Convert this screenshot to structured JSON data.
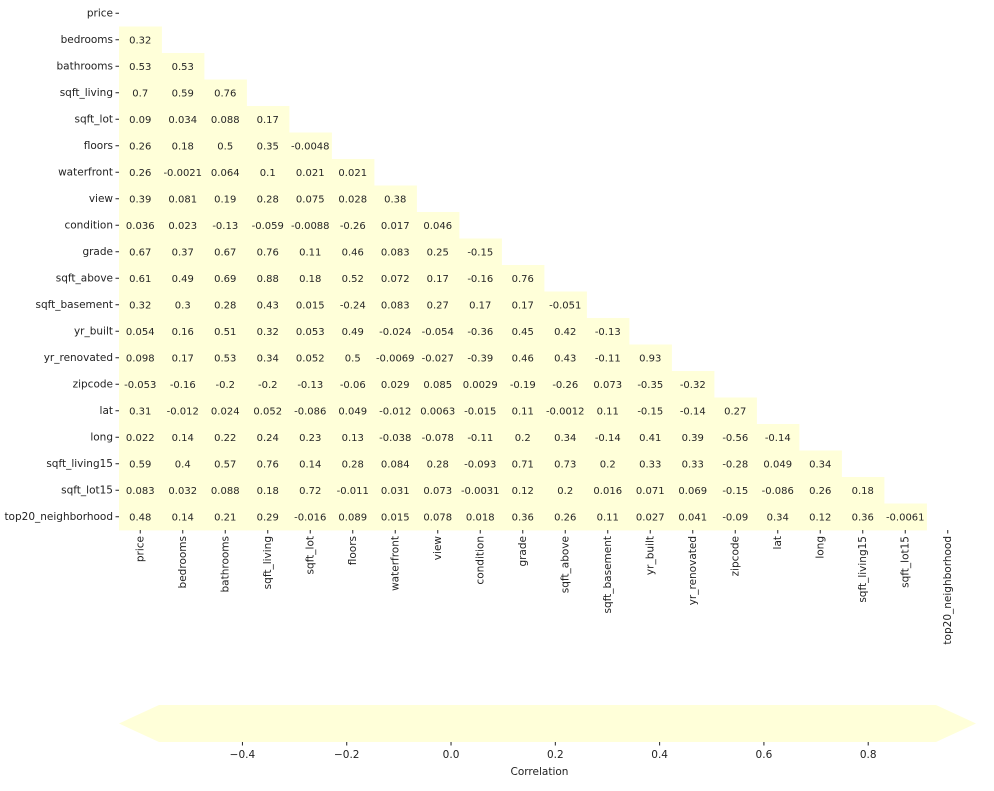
{
  "chart_data": {
    "type": "heatmap",
    "title": "",
    "mask": "upper-triangle",
    "labels": [
      "price",
      "bedrooms",
      "bathrooms",
      "sqft_living",
      "sqft_lot",
      "floors",
      "waterfront",
      "view",
      "condition",
      "grade",
      "sqft_above",
      "sqft_basement",
      "yr_built",
      "yr_renovated",
      "zipcode",
      "lat",
      "long",
      "sqft_living15",
      "sqft_lot15",
      "top20_neighborhood"
    ],
    "values": [
      [],
      [
        "0.32"
      ],
      [
        "0.53",
        "0.53"
      ],
      [
        "0.7",
        "0.59",
        "0.76"
      ],
      [
        "0.09",
        "0.034",
        "0.088",
        "0.17"
      ],
      [
        "0.26",
        "0.18",
        "0.5",
        "0.35",
        "-0.0048"
      ],
      [
        "0.26",
        "-0.0021",
        "0.064",
        "0.1",
        "0.021",
        "0.021"
      ],
      [
        "0.39",
        "0.081",
        "0.19",
        "0.28",
        "0.075",
        "0.028",
        "0.38"
      ],
      [
        "0.036",
        "0.023",
        "-0.13",
        "-0.059",
        "-0.0088",
        "-0.26",
        "0.017",
        "0.046"
      ],
      [
        "0.67",
        "0.37",
        "0.67",
        "0.76",
        "0.11",
        "0.46",
        "0.083",
        "0.25",
        "-0.15"
      ],
      [
        "0.61",
        "0.49",
        "0.69",
        "0.88",
        "0.18",
        "0.52",
        "0.072",
        "0.17",
        "-0.16",
        "0.76"
      ],
      [
        "0.32",
        "0.3",
        "0.28",
        "0.43",
        "0.015",
        "-0.24",
        "0.083",
        "0.27",
        "0.17",
        "0.17",
        "-0.051"
      ],
      [
        "0.054",
        "0.16",
        "0.51",
        "0.32",
        "0.053",
        "0.49",
        "-0.024",
        "-0.054",
        "-0.36",
        "0.45",
        "0.42",
        "-0.13"
      ],
      [
        "0.098",
        "0.17",
        "0.53",
        "0.34",
        "0.052",
        "0.5",
        "-0.0069",
        "-0.027",
        "-0.39",
        "0.46",
        "0.43",
        "-0.11",
        "0.93"
      ],
      [
        "-0.053",
        "-0.16",
        "-0.2",
        "-0.2",
        "-0.13",
        "-0.06",
        "0.029",
        "0.085",
        "0.0029",
        "-0.19",
        "-0.26",
        "0.073",
        "-0.35",
        "-0.32"
      ],
      [
        "0.31",
        "-0.012",
        "0.024",
        "0.052",
        "-0.086",
        "0.049",
        "-0.012",
        "0.0063",
        "-0.015",
        "0.11",
        "-0.0012",
        "0.11",
        "-0.15",
        "-0.14",
        "0.27"
      ],
      [
        "0.022",
        "0.14",
        "0.22",
        "0.24",
        "0.23",
        "0.13",
        "-0.038",
        "-0.078",
        "-0.11",
        "0.2",
        "0.34",
        "-0.14",
        "0.41",
        "0.39",
        "-0.56",
        "-0.14"
      ],
      [
        "0.59",
        "0.4",
        "0.57",
        "0.76",
        "0.14",
        "0.28",
        "0.084",
        "0.28",
        "-0.093",
        "0.71",
        "0.73",
        "0.2",
        "0.33",
        "0.33",
        "-0.28",
        "0.049",
        "0.34"
      ],
      [
        "0.083",
        "0.032",
        "0.088",
        "0.18",
        "0.72",
        "-0.011",
        "0.031",
        "0.073",
        "-0.0031",
        "0.12",
        "0.2",
        "0.016",
        "0.071",
        "0.069",
        "-0.15",
        "-0.086",
        "0.26",
        "0.18"
      ],
      [
        "0.48",
        "0.14",
        "0.21",
        "0.29",
        "-0.016",
        "0.089",
        "0.015",
        "0.078",
        "0.018",
        "0.36",
        "0.26",
        "0.11",
        "0.027",
        "0.041",
        "-0.09",
        "0.34",
        "0.12",
        "0.36",
        "-0.0061"
      ]
    ],
    "colormap": "YlGnBu",
    "vmin": -0.56,
    "vmax": 0.93,
    "colorbar": {
      "label": "Correlation",
      "orientation": "horizontal",
      "placement": "bottom",
      "ticks": [
        "−0.4",
        "−0.2",
        "0.0",
        "0.2",
        "0.4",
        "0.6",
        "0.8"
      ],
      "tick_values": [
        -0.4,
        -0.2,
        0.0,
        0.2,
        0.4,
        0.6,
        0.8
      ],
      "extend": "both"
    }
  }
}
